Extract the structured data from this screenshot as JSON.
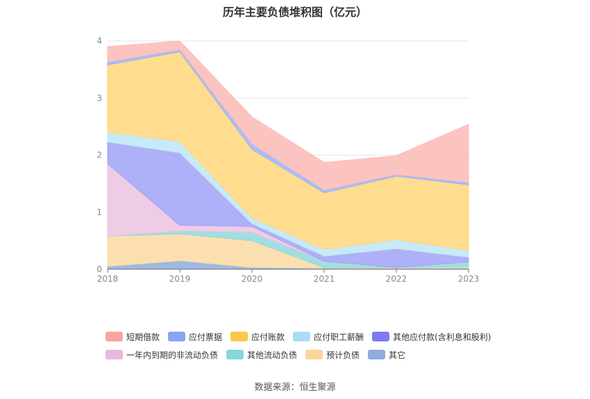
{
  "chart_data": {
    "type": "area",
    "stacked": true,
    "title": "历年主要负债堆积图（亿元）",
    "categories": [
      "2018",
      "2019",
      "2020",
      "2021",
      "2022",
      "2023"
    ],
    "ylim": [
      0,
      4
    ],
    "yticks": [
      0,
      1,
      2,
      3,
      4
    ],
    "grid": true,
    "legend_position": "bottom",
    "series": [
      {
        "name": "其它",
        "color": "#8eaddb",
        "values": [
          0.05,
          0.15,
          0.03,
          0.02,
          0.02,
          0.02
        ]
      },
      {
        "name": "预计负债",
        "color": "#fbd9a1",
        "values": [
          0.53,
          0.47,
          0.47,
          0.01,
          0.01,
          0.02
        ]
      },
      {
        "name": "其他流动负债",
        "color": "#8fd8dc",
        "values": [
          0.0,
          0.05,
          0.15,
          0.11,
          0.0,
          0.09
        ]
      },
      {
        "name": "一年内到期的非流动负债",
        "color": "#ecc3e0",
        "values": [
          1.27,
          0.1,
          0.1,
          0.0,
          0.0,
          0.0
        ]
      },
      {
        "name": "其他应付款(含利息和股利)",
        "color": "#a0a2f7",
        "values": [
          0.38,
          1.27,
          0.05,
          0.09,
          0.33,
          0.08
        ]
      },
      {
        "name": "应付职工薪酬",
        "color": "#bde6f6",
        "values": [
          0.17,
          0.2,
          0.1,
          0.12,
          0.16,
          0.12
        ]
      },
      {
        "name": "应付账款",
        "color": "#ffd67a",
        "values": [
          1.18,
          1.57,
          1.2,
          0.99,
          1.11,
          1.15
        ]
      },
      {
        "name": "应付票据",
        "color": "#9bb2f8",
        "values": [
          0.05,
          0.04,
          0.1,
          0.05,
          0.03,
          0.04
        ]
      },
      {
        "name": "短期借款",
        "color": "#fbbab5",
        "values": [
          0.27,
          0.15,
          0.47,
          0.48,
          0.33,
          1.02
        ]
      }
    ]
  },
  "legend": {
    "items": [
      {
        "label": "短期借款",
        "color": "#f9a59e"
      },
      {
        "label": "应付票据",
        "color": "#8aa4f5"
      },
      {
        "label": "应付账款",
        "color": "#fcc74a"
      },
      {
        "label": "应付职工薪酬",
        "color": "#a8ddf8"
      },
      {
        "label": "其他应付款(含利息和股利)",
        "color": "#7b7cf2"
      },
      {
        "label": "一年内到期的非流动负债",
        "color": "#e8b9dc"
      },
      {
        "label": "其他流动负债",
        "color": "#86d7da"
      },
      {
        "label": "预计负债",
        "color": "#fcd49a"
      },
      {
        "label": "其它",
        "color": "#8eaddb"
      }
    ]
  },
  "footer": {
    "source": "数据来源：恒生聚源"
  }
}
